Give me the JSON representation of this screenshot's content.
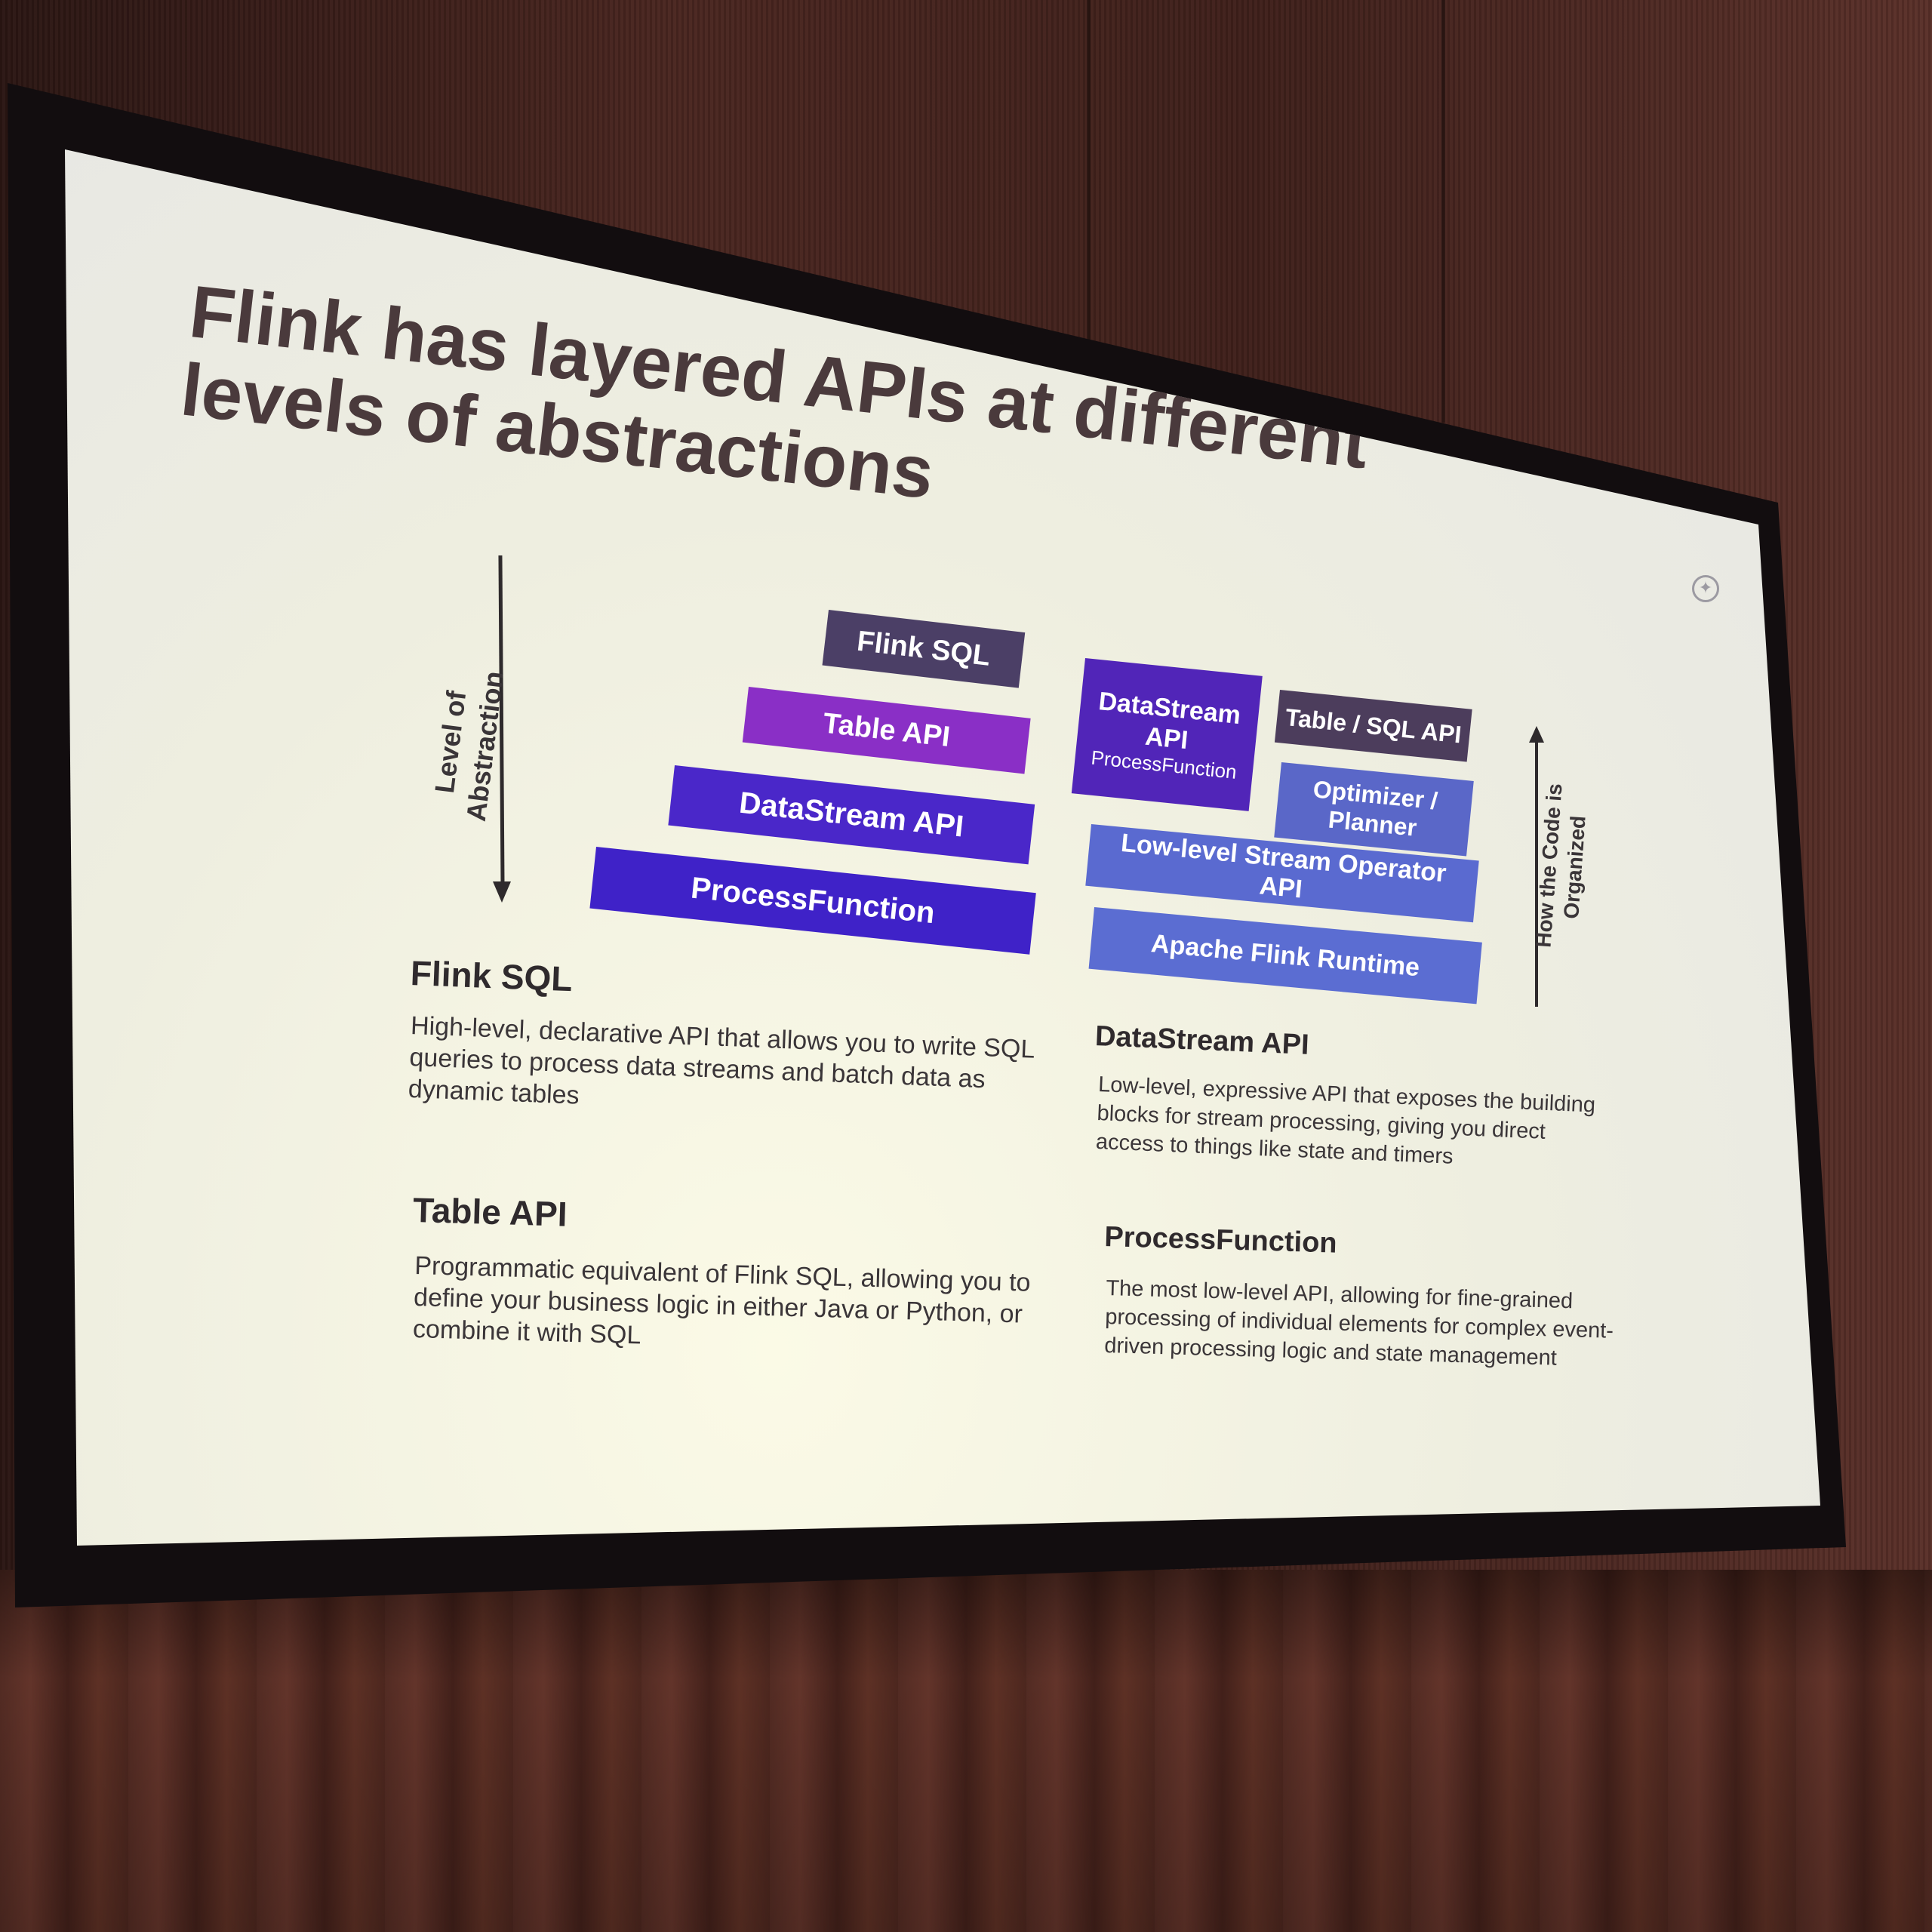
{
  "slide": {
    "title": "Flink has layered APIs at different levels of abstractions",
    "left_axis_label": "Level of Abstraction",
    "right_axis_label": "How the Code is Organized"
  },
  "left_stack": [
    {
      "label": "Flink SQL",
      "color": "#4b3f66"
    },
    {
      "label": "Table API",
      "color": "#8a2fc6"
    },
    {
      "label": "DataStream API",
      "color": "#4a27c9"
    },
    {
      "label": "ProcessFunction",
      "color": "#3f22c8"
    }
  ],
  "right_stack": {
    "datastream": {
      "label": "DataStream API",
      "sub": "ProcessFunction",
      "color": "#5125b8"
    },
    "table_sql": {
      "label": "Table / SQL API",
      "color": "#4c3d5c"
    },
    "optimizer": {
      "label": "Optimizer / Planner",
      "color": "#5a67c8"
    },
    "operator": {
      "label": "Low-level Stream Operator API",
      "color": "#5a6ad0"
    },
    "runtime": {
      "label": "Apache Flink Runtime",
      "color": "#5b6dd2"
    }
  },
  "descriptions": [
    {
      "title": "Flink SQL",
      "text": "High-level, declarative API that allows you to write SQL queries to process data streams and batch data as dynamic tables"
    },
    {
      "title": "Table API",
      "text": "Programmatic equivalent of Flink SQL, allowing you to define your business logic in either Java or Python, or combine it with SQL"
    },
    {
      "title": "DataStream API",
      "text": "Low-level, expressive API that exposes the building blocks for stream processing, giving you direct access to things like state and timers"
    },
    {
      "title": "ProcessFunction",
      "text": "The most low-level API, allowing for fine-grained processing of individual elements for complex event-driven processing logic and state management"
    }
  ]
}
